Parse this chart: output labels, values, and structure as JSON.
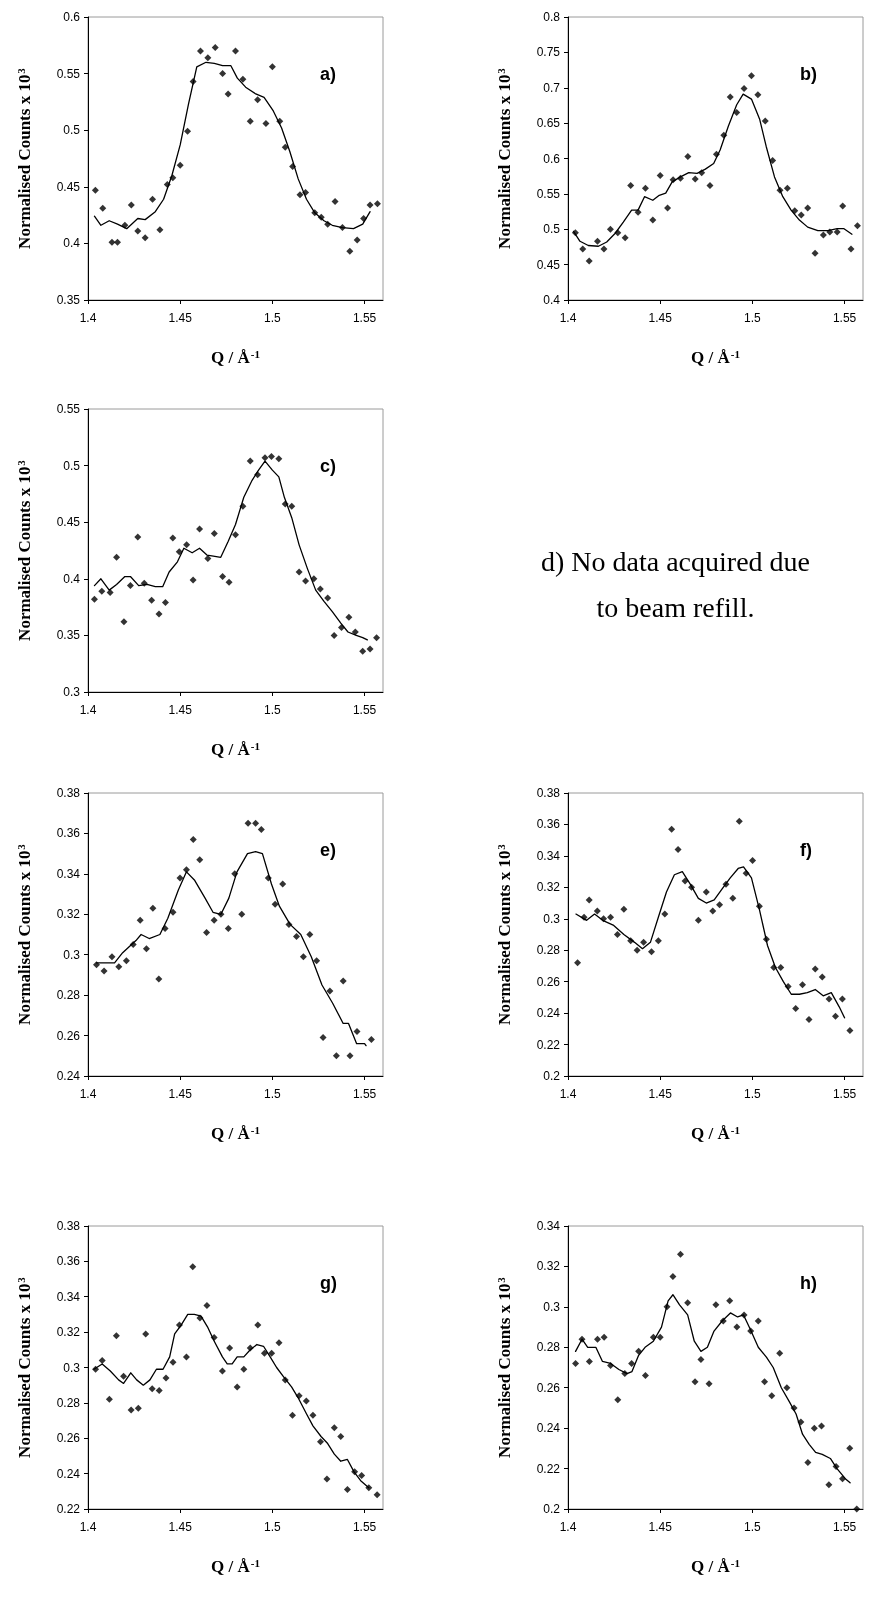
{
  "chart_data": [
    {
      "type": "scatter",
      "xlabel": "Q / Å$^{-1}$",
      "ylabel": "Normalised Counts x 10$^{3}$",
      "annotations": [
        "a)"
      ],
      "xlim": [
        1.4,
        1.56
      ],
      "xticks": [
        1.4,
        1.45,
        1.5,
        1.55
      ],
      "ylim": [
        0.35,
        0.6
      ],
      "yticks": [
        0.35,
        0.4,
        0.45,
        0.5,
        0.55,
        0.6
      ],
      "series": [
        {
          "type": "scatter",
          "marker": "diamond",
          "color": "#000000",
          "x": [
            1.404,
            1.408,
            1.413,
            1.416,
            1.42,
            1.4235,
            1.427,
            1.431,
            1.435,
            1.439,
            1.443,
            1.446,
            1.45,
            1.454,
            1.457,
            1.461,
            1.465,
            1.469,
            1.473,
            1.476,
            1.48,
            1.484,
            1.488,
            1.492,
            1.4965,
            1.5,
            1.504,
            1.507,
            1.511,
            1.515,
            1.518,
            1.523,
            1.5265,
            1.53,
            1.534,
            1.538,
            1.542,
            1.546,
            1.5495,
            1.553,
            1.557
          ],
          "values": [
            0.447,
            0.431,
            0.401,
            0.401,
            0.416,
            0.434,
            0.411,
            0.405,
            0.439,
            0.412,
            0.452,
            0.458,
            0.469,
            0.499,
            0.543,
            0.57,
            0.564,
            0.573,
            0.55,
            0.532,
            0.57,
            0.545,
            0.508,
            0.527,
            0.506,
            0.556,
            0.508,
            0.485,
            0.468,
            0.443,
            0.445,
            0.427,
            0.423,
            0.417,
            0.437,
            0.414,
            0.393,
            0.403,
            0.422,
            0.434,
            0.435
          ]
        },
        {
          "type": "line",
          "marker": "none",
          "color": "#000000",
          "x": [
            1.4035,
            1.407,
            1.4115,
            1.416,
            1.421,
            1.427,
            1.431,
            1.4365,
            1.441,
            1.4455,
            1.45,
            1.4545,
            1.459,
            1.464,
            1.4685,
            1.473,
            1.4775,
            1.481,
            1.4855,
            1.491,
            1.4955,
            1.5005,
            1.505,
            1.5095,
            1.514,
            1.5185,
            1.523,
            1.528,
            1.5325,
            1.538,
            1.544,
            1.549,
            1.553
          ],
          "values": [
            0.424,
            0.416,
            0.42,
            0.417,
            0.413,
            0.422,
            0.421,
            0.428,
            0.439,
            0.46,
            0.487,
            0.523,
            0.556,
            0.56,
            0.559,
            0.557,
            0.557,
            0.546,
            0.538,
            0.532,
            0.529,
            0.517,
            0.502,
            0.481,
            0.457,
            0.439,
            0.427,
            0.42,
            0.416,
            0.414,
            0.413,
            0.417,
            0.428
          ]
        }
      ]
    },
    {
      "type": "scatter",
      "xlabel": "Q / Å$^{-1}$",
      "ylabel": "Normalised Counts x 10$^{3}$",
      "annotations": [
        "b)"
      ],
      "xlim": [
        1.4,
        1.56
      ],
      "xticks": [
        1.4,
        1.45,
        1.5,
        1.55
      ],
      "ylim": [
        0.4,
        0.8
      ],
      "yticks": [
        0.4,
        0.45,
        0.5,
        0.55,
        0.6,
        0.65,
        0.7,
        0.75,
        0.8
      ],
      "series": [
        {
          "type": "scatter",
          "marker": "diamond",
          "color": "#000000",
          "x": [
            1.404,
            1.408,
            1.4115,
            1.416,
            1.4195,
            1.423,
            1.427,
            1.431,
            1.434,
            1.438,
            1.442,
            1.446,
            1.45,
            1.454,
            1.457,
            1.461,
            1.465,
            1.469,
            1.4725,
            1.477,
            1.4805,
            1.4845,
            1.488,
            1.4915,
            1.4955,
            1.4995,
            1.503,
            1.507,
            1.511,
            1.515,
            1.519,
            1.523,
            1.5265,
            1.53,
            1.534,
            1.5385,
            1.542,
            1.546,
            1.549,
            1.5535,
            1.557
          ],
          "values": [
            0.495,
            0.472,
            0.455,
            0.483,
            0.472,
            0.5,
            0.495,
            0.488,
            0.562,
            0.524,
            0.558,
            0.513,
            0.576,
            0.53,
            0.57,
            0.572,
            0.603,
            0.571,
            0.58,
            0.562,
            0.606,
            0.633,
            0.687,
            0.665,
            0.699,
            0.717,
            0.69,
            0.653,
            0.597,
            0.555,
            0.558,
            0.526,
            0.52,
            0.53,
            0.466,
            0.492,
            0.496,
            0.496,
            0.533,
            0.472,
            0.505
          ]
        },
        {
          "type": "line",
          "marker": "none",
          "color": "#000000",
          "x": [
            1.403,
            1.4065,
            1.411,
            1.4165,
            1.421,
            1.4255,
            1.43,
            1.4345,
            1.438,
            1.4415,
            1.446,
            1.4495,
            1.453,
            1.4565,
            1.461,
            1.4655,
            1.47,
            1.4745,
            1.479,
            1.4825,
            1.487,
            1.4915,
            1.495,
            1.4995,
            1.504,
            1.5075,
            1.512,
            1.5165,
            1.521,
            1.5255,
            1.53,
            1.5355,
            1.541,
            1.546,
            1.5495,
            1.554
          ],
          "values": [
            0.497,
            0.483,
            0.477,
            0.476,
            0.482,
            0.494,
            0.51,
            0.527,
            0.527,
            0.546,
            0.541,
            0.548,
            0.551,
            0.567,
            0.574,
            0.58,
            0.579,
            0.585,
            0.593,
            0.612,
            0.646,
            0.676,
            0.691,
            0.684,
            0.655,
            0.617,
            0.574,
            0.546,
            0.527,
            0.513,
            0.503,
            0.498,
            0.498,
            0.501,
            0.501,
            0.493
          ]
        }
      ]
    },
    {
      "type": "scatter",
      "xlabel": "Q / Å$^{-1}$",
      "ylabel": "Normalised Counts x 10$^{3}$",
      "annotations": [
        "c)"
      ],
      "xlim": [
        1.4,
        1.56
      ],
      "xticks": [
        1.4,
        1.45,
        1.5,
        1.55
      ],
      "ylim": [
        0.3,
        0.55
      ],
      "yticks": [
        0.3,
        0.35,
        0.4,
        0.45,
        0.5,
        0.55
      ],
      "series": [
        {
          "type": "scatter",
          "marker": "diamond",
          "color": "#000000",
          "x": [
            1.4035,
            1.4075,
            1.412,
            1.4155,
            1.4195,
            1.423,
            1.427,
            1.4305,
            1.4345,
            1.4385,
            1.442,
            1.446,
            1.4495,
            1.4535,
            1.457,
            1.4605,
            1.465,
            1.4685,
            1.473,
            1.4765,
            1.48,
            1.484,
            1.488,
            1.492,
            1.496,
            1.4995,
            1.5035,
            1.507,
            1.5105,
            1.5145,
            1.518,
            1.5225,
            1.526,
            1.53,
            1.5335,
            1.5375,
            1.5415,
            1.545,
            1.549,
            1.553,
            1.5565
          ],
          "values": [
            0.382,
            0.389,
            0.388,
            0.419,
            0.362,
            0.394,
            0.437,
            0.396,
            0.381,
            0.369,
            0.379,
            0.436,
            0.424,
            0.43,
            0.399,
            0.444,
            0.418,
            0.44,
            0.402,
            0.397,
            0.439,
            0.464,
            0.504,
            0.492,
            0.507,
            0.508,
            0.506,
            0.466,
            0.464,
            0.406,
            0.398,
            0.4,
            0.391,
            0.383,
            0.35,
            0.357,
            0.366,
            0.353,
            0.336,
            0.338,
            0.348
          ]
        },
        {
          "type": "line",
          "marker": "none",
          "color": "#000000",
          "x": [
            1.4035,
            1.407,
            1.4115,
            1.4155,
            1.42,
            1.423,
            1.4275,
            1.432,
            1.4365,
            1.4405,
            1.444,
            1.4485,
            1.452,
            1.4565,
            1.4605,
            1.4645,
            1.468,
            1.472,
            1.476,
            1.48,
            1.4845,
            1.489,
            1.4925,
            1.496,
            1.5,
            1.5035,
            1.5065,
            1.5105,
            1.5145,
            1.519,
            1.5235,
            1.528,
            1.5325,
            1.537,
            1.541,
            1.5455,
            1.549,
            1.5515
          ],
          "values": [
            0.394,
            0.4,
            0.39,
            0.395,
            0.402,
            0.402,
            0.394,
            0.395,
            0.393,
            0.393,
            0.406,
            0.415,
            0.427,
            0.423,
            0.427,
            0.421,
            0.42,
            0.419,
            0.433,
            0.448,
            0.472,
            0.487,
            0.496,
            0.504,
            0.496,
            0.49,
            0.472,
            0.454,
            0.43,
            0.409,
            0.39,
            0.38,
            0.371,
            0.361,
            0.353,
            0.35,
            0.348,
            0.346
          ]
        }
      ]
    },
    {
      "type": "other",
      "annotations": [
        "d) No data acquired due to beam refill."
      ]
    },
    {
      "type": "scatter",
      "xlabel": "Q / Å$^{-1}$",
      "ylabel": "Normalised Counts x 10$^{3}$",
      "annotations": [
        "e)"
      ],
      "xlim": [
        1.4,
        1.56
      ],
      "xticks": [
        1.4,
        1.45,
        1.5,
        1.55
      ],
      "ylim": [
        0.24,
        0.38
      ],
      "yticks": [
        0.24,
        0.26,
        0.28,
        0.3,
        0.32,
        0.34,
        0.36,
        0.38
      ],
      "series": [
        {
          "type": "scatter",
          "marker": "diamond",
          "color": "#000000",
          "x": [
            1.4046,
            1.4087,
            1.413,
            1.4167,
            1.4208,
            1.4245,
            1.4283,
            1.4317,
            1.4352,
            1.4384,
            1.4418,
            1.4461,
            1.4499,
            1.4534,
            1.4571,
            1.4606,
            1.4643,
            1.4684,
            1.4721,
            1.4761,
            1.4796,
            1.4834,
            1.4868,
            1.4909,
            1.494,
            1.4978,
            1.5015,
            1.5056,
            1.509,
            1.5131,
            1.5168,
            1.5203,
            1.524,
            1.5275,
            1.5312,
            1.5347,
            1.5384,
            1.5421,
            1.5459,
            1.5537
          ],
          "values": [
            0.295,
            0.292,
            0.299,
            0.294,
            0.297,
            0.305,
            0.317,
            0.303,
            0.323,
            0.288,
            0.313,
            0.321,
            0.338,
            0.342,
            0.357,
            0.347,
            0.311,
            0.317,
            0.32,
            0.313,
            0.34,
            0.32,
            0.365,
            0.365,
            0.362,
            0.338,
            0.325,
            0.335,
            0.315,
            0.309,
            0.299,
            0.31,
            0.297,
            0.259,
            0.282,
            0.25,
            0.287,
            0.25,
            0.262,
            0.258
          ]
        },
        {
          "type": "line",
          "marker": "none",
          "color": "#000000",
          "x": [
            1.4046,
            1.4144,
            1.4188,
            1.426,
            1.4288,
            1.4332,
            1.439,
            1.4433,
            1.449,
            1.4534,
            1.4577,
            1.4635,
            1.4678,
            1.4721,
            1.4764,
            1.4808,
            1.4865,
            1.4909,
            1.4946,
            1.4995,
            1.5038,
            1.5096,
            1.5154,
            1.5211,
            1.5269,
            1.5327,
            1.5384,
            1.5413,
            1.5457,
            1.55,
            1.5508
          ],
          "values": [
            0.296,
            0.296,
            0.301,
            0.307,
            0.31,
            0.308,
            0.31,
            0.318,
            0.332,
            0.341,
            0.337,
            0.328,
            0.321,
            0.32,
            0.328,
            0.341,
            0.35,
            0.351,
            0.35,
            0.335,
            0.324,
            0.315,
            0.31,
            0.299,
            0.285,
            0.276,
            0.266,
            0.266,
            0.256,
            0.256,
            0.255
          ]
        }
      ]
    },
    {
      "type": "scatter",
      "xlabel": "Q / Å$^{-1}$",
      "ylabel": "Normalised Counts x 10$^{3}$",
      "annotations": [
        "f)"
      ],
      "xlim": [
        1.4,
        1.56
      ],
      "xticks": [
        1.4,
        1.45,
        1.5,
        1.55
      ],
      "ylim": [
        0.2,
        0.38
      ],
      "yticks": [
        0.2,
        0.22,
        0.24,
        0.26,
        0.28,
        0.3,
        0.32,
        0.34,
        0.36,
        0.38
      ],
      "series": [
        {
          "type": "scatter",
          "marker": "diamond",
          "color": "#000000",
          "x": [
            1.4052,
            1.4087,
            1.4115,
            1.4159,
            1.4193,
            1.4231,
            1.4268,
            1.4303,
            1.434,
            1.4375,
            1.441,
            1.4453,
            1.449,
            1.4525,
            1.4562,
            1.4597,
            1.4635,
            1.467,
            1.4707,
            1.475,
            1.4785,
            1.4822,
            1.4857,
            1.4894,
            1.4929,
            1.4966,
            1.5001,
            1.5038,
            1.5076,
            1.5116,
            1.5154,
            1.5194,
            1.5235,
            1.5272,
            1.5307,
            1.5341,
            1.5379,
            1.5416,
            1.5451,
            1.5488,
            1.5529
          ],
          "values": [
            0.272,
            0.301,
            0.312,
            0.305,
            0.3,
            0.301,
            0.29,
            0.306,
            0.286,
            0.28,
            0.285,
            0.279,
            0.286,
            0.303,
            0.357,
            0.344,
            0.324,
            0.32,
            0.299,
            0.317,
            0.305,
            0.309,
            0.322,
            0.313,
            0.362,
            0.329,
            0.337,
            0.308,
            0.287,
            0.269,
            0.269,
            0.257,
            0.243,
            0.258,
            0.236,
            0.268,
            0.263,
            0.249,
            0.238,
            0.249,
            0.229
          ]
        },
        {
          "type": "line",
          "marker": "none",
          "color": "#000000",
          "x": [
            1.4043,
            1.4101,
            1.4144,
            1.4188,
            1.4245,
            1.4303,
            1.4361,
            1.4404,
            1.4447,
            1.449,
            1.4534,
            1.4577,
            1.462,
            1.4663,
            1.4707,
            1.475,
            1.4793,
            1.4836,
            1.488,
            1.4923,
            1.4952,
            1.4995,
            1.5038,
            1.5082,
            1.5125,
            1.5168,
            1.5211,
            1.5255,
            1.5298,
            1.5341,
            1.5384,
            1.5428,
            1.5471,
            1.55
          ],
          "values": [
            0.303,
            0.299,
            0.303,
            0.299,
            0.296,
            0.29,
            0.285,
            0.281,
            0.285,
            0.301,
            0.317,
            0.328,
            0.33,
            0.322,
            0.313,
            0.31,
            0.312,
            0.319,
            0.326,
            0.332,
            0.333,
            0.326,
            0.306,
            0.283,
            0.269,
            0.26,
            0.252,
            0.252,
            0.253,
            0.255,
            0.251,
            0.253,
            0.244,
            0.237
          ]
        }
      ]
    },
    {
      "type": "scatter",
      "xlabel": "Q / Å$^{-1}$",
      "ylabel": "Normalised Counts x 10$^{3}$",
      "annotations": [
        "g)"
      ],
      "xlim": [
        1.4,
        1.56
      ],
      "xticks": [
        1.4,
        1.45,
        1.5,
        1.55
      ],
      "ylim": [
        0.22,
        0.38
      ],
      "yticks": [
        0.22,
        0.24,
        0.26,
        0.28,
        0.3,
        0.32,
        0.34,
        0.36,
        0.38
      ],
      "series": [
        {
          "type": "scatter",
          "marker": "diamond",
          "color": "#000000",
          "x": [
            1.4041,
            1.4077,
            1.4116,
            1.4154,
            1.4193,
            1.4234,
            1.4273,
            1.4313,
            1.4348,
            1.4386,
            1.4423,
            1.4461,
            1.4496,
            1.4534,
            1.4568,
            1.4607,
            1.4645,
            1.4684,
            1.4729,
            1.4768,
            1.4809,
            1.4845,
            1.488,
            1.4921,
            1.4957,
            1.4996,
            1.5036,
            1.507,
            1.5109,
            1.5145,
            1.5184,
            1.522,
            1.5261,
            1.5296,
            1.5336,
            1.5371,
            1.5407,
            1.5446,
            1.5484,
            1.5523,
            1.5568
          ],
          "values": [
            0.299,
            0.304,
            0.282,
            0.318,
            0.295,
            0.276,
            0.277,
            0.319,
            0.288,
            0.287,
            0.294,
            0.303,
            0.324,
            0.306,
            0.357,
            0.328,
            0.335,
            0.317,
            0.298,
            0.311,
            0.289,
            0.299,
            0.311,
            0.324,
            0.308,
            0.308,
            0.314,
            0.293,
            0.273,
            0.284,
            0.281,
            0.273,
            0.258,
            0.237,
            0.266,
            0.261,
            0.231,
            0.241,
            0.239,
            0.232,
            0.228
          ]
        },
        {
          "type": "line",
          "marker": "none",
          "color": "#000000",
          "x": [
            1.4032,
            1.4077,
            1.4121,
            1.4166,
            1.4193,
            1.4232,
            1.4264,
            1.43,
            1.4336,
            1.4371,
            1.4407,
            1.4443,
            1.447,
            1.4505,
            1.4541,
            1.4577,
            1.4613,
            1.4648,
            1.4684,
            1.4729,
            1.4755,
            1.4782,
            1.4809,
            1.4845,
            1.488,
            1.4916,
            1.4952,
            1.4988,
            1.5023,
            1.5059,
            1.5104,
            1.5139,
            1.5184,
            1.522,
            1.5264,
            1.53,
            1.5336,
            1.5371,
            1.5407,
            1.5443,
            1.5479,
            1.5523
          ],
          "values": [
            0.299,
            0.302,
            0.298,
            0.293,
            0.291,
            0.297,
            0.293,
            0.29,
            0.293,
            0.299,
            0.299,
            0.306,
            0.319,
            0.324,
            0.33,
            0.33,
            0.329,
            0.323,
            0.315,
            0.306,
            0.302,
            0.302,
            0.306,
            0.306,
            0.31,
            0.313,
            0.312,
            0.306,
            0.3,
            0.295,
            0.289,
            0.283,
            0.274,
            0.267,
            0.261,
            0.257,
            0.251,
            0.247,
            0.248,
            0.241,
            0.236,
            0.232
          ]
        }
      ]
    },
    {
      "type": "scatter",
      "xlabel": "Q / Å$^{-1}$",
      "ylabel": "Normalised Counts x 10$^{3}$",
      "annotations": [
        "h)"
      ],
      "xlim": [
        1.4,
        1.56
      ],
      "xticks": [
        1.4,
        1.45,
        1.5,
        1.55
      ],
      "ylim": [
        0.2,
        0.34
      ],
      "yticks": [
        0.2,
        0.22,
        0.24,
        0.26,
        0.28,
        0.3,
        0.32,
        0.34
      ],
      "series": [
        {
          "type": "scatter",
          "marker": "diamond",
          "color": "#000000",
          "x": [
            1.4041,
            1.4076,
            1.4116,
            1.416,
            1.4196,
            1.4231,
            1.427,
            1.4308,
            1.4345,
            1.4383,
            1.442,
            1.4463,
            1.45,
            1.4537,
            1.4569,
            1.461,
            1.4649,
            1.4689,
            1.4721,
            1.4765,
            1.4802,
            1.4842,
            1.4877,
            1.4916,
            1.4955,
            1.4991,
            1.5032,
            1.5066,
            1.5105,
            1.5148,
            1.5187,
            1.5226,
            1.5263,
            1.5301,
            1.5336,
            1.5375,
            1.5415,
            1.5454,
            1.5489,
            1.5528,
            1.5566
          ],
          "values": [
            0.272,
            0.284,
            0.273,
            0.284,
            0.285,
            0.271,
            0.254,
            0.267,
            0.272,
            0.278,
            0.266,
            0.285,
            0.285,
            0.3,
            0.315,
            0.326,
            0.302,
            0.263,
            0.274,
            0.262,
            0.301,
            0.293,
            0.303,
            0.29,
            0.296,
            0.288,
            0.293,
            0.263,
            0.256,
            0.277,
            0.26,
            0.25,
            0.243,
            0.223,
            0.24,
            0.241,
            0.212,
            0.221,
            0.215,
            0.23,
            0.2
          ]
        },
        {
          "type": "line",
          "marker": "none",
          "color": "#000000",
          "x": [
            1.4041,
            1.4076,
            1.4107,
            1.4151,
            1.4187,
            1.4231,
            1.4276,
            1.432,
            1.4347,
            1.4383,
            1.4418,
            1.4463,
            1.4507,
            1.4543,
            1.4569,
            1.4605,
            1.4649,
            1.4685,
            1.4721,
            1.4756,
            1.4792,
            1.4836,
            1.4881,
            1.492,
            1.4952,
            1.4988,
            1.5032,
            1.5077,
            1.5113,
            1.5157,
            1.5201,
            1.5237,
            1.5272,
            1.5308,
            1.5343,
            1.5379,
            1.5423,
            1.5459,
            1.5504,
            1.553
          ],
          "values": [
            0.278,
            0.284,
            0.28,
            0.28,
            0.273,
            0.272,
            0.269,
            0.267,
            0.268,
            0.276,
            0.28,
            0.283,
            0.29,
            0.303,
            0.306,
            0.301,
            0.296,
            0.283,
            0.278,
            0.28,
            0.288,
            0.293,
            0.297,
            0.295,
            0.296,
            0.289,
            0.28,
            0.275,
            0.27,
            0.26,
            0.253,
            0.247,
            0.237,
            0.232,
            0.228,
            0.227,
            0.225,
            0.22,
            0.215,
            0.213
          ]
        }
      ]
    }
  ]
}
